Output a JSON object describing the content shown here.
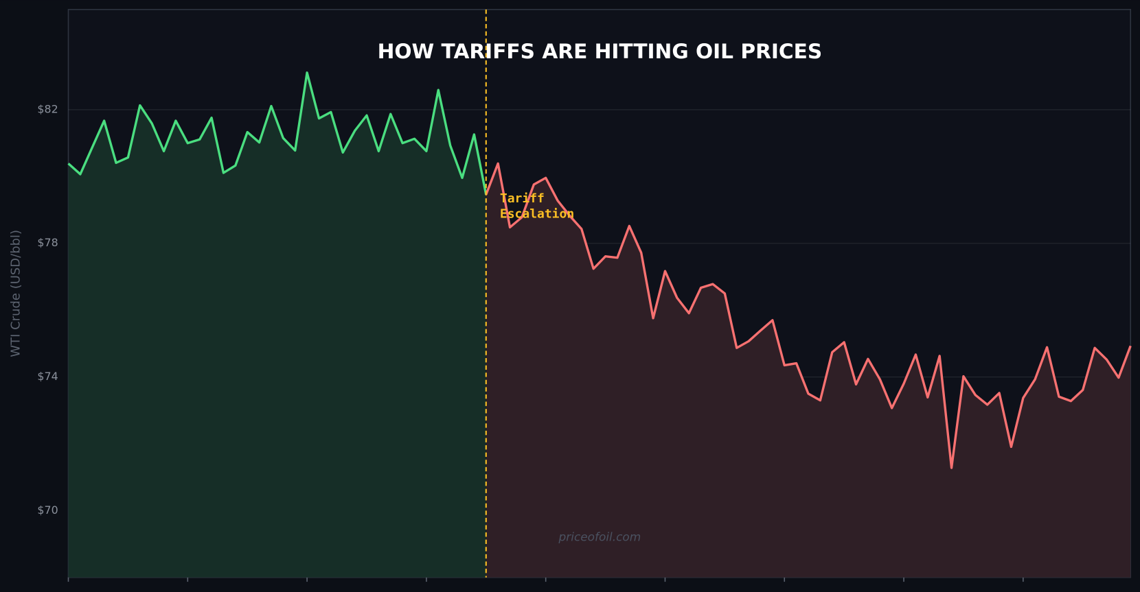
{
  "chart_data": {
    "type": "line",
    "title": "HOW TARIFFS ARE HITTING OIL PRICES",
    "y_label": "WTI Crude  (USD/bbl)",
    "watermark": "priceofoil.com",
    "annotation": {
      "text": [
        "Tariff",
        "Escalation"
      ],
      "x": 35,
      "color": "#fbbf24"
    },
    "x": [
      0,
      1,
      2,
      3,
      4,
      5,
      6,
      7,
      8,
      9,
      10,
      11,
      12,
      13,
      14,
      15,
      16,
      17,
      18,
      19,
      20,
      21,
      22,
      23,
      24,
      25,
      26,
      27,
      28,
      29,
      30,
      31,
      32,
      33,
      34,
      35,
      36,
      37,
      38,
      39,
      40,
      41,
      42,
      43,
      44,
      45,
      46,
      47,
      48,
      49,
      50,
      51,
      52,
      53,
      54,
      55,
      56,
      57,
      58,
      59,
      60,
      61,
      62,
      63,
      64,
      65,
      66,
      67,
      68,
      69,
      70,
      71,
      72,
      73,
      74,
      75,
      76,
      77,
      78,
      79,
      80,
      81,
      82,
      83,
      84,
      85,
      86,
      87,
      88,
      89
    ],
    "series": [
      {
        "color": "#4ade80",
        "fill": "#162e27",
        "values": [
          80.39,
          80.07,
          80.87,
          81.67,
          80.41,
          80.57,
          82.13,
          81.59,
          80.76,
          81.67,
          81.0,
          81.11,
          81.76,
          80.11,
          80.33,
          81.33,
          81.02,
          82.11,
          81.15,
          80.78,
          83.11,
          81.74,
          81.93,
          80.72,
          81.37,
          81.83,
          80.76,
          81.87,
          81.0,
          81.13,
          80.76,
          82.59,
          80.93,
          79.96,
          81.26,
          79.46,
          null,
          null,
          null,
          null,
          null,
          null,
          null,
          null,
          null,
          null,
          null,
          null,
          null,
          null,
          null,
          null,
          null,
          null,
          null,
          null,
          null,
          null,
          null,
          null,
          null,
          null,
          null,
          null,
          null,
          null,
          null,
          null,
          null,
          null,
          null,
          null,
          null,
          null,
          null,
          null,
          null,
          null,
          null,
          null,
          null,
          null,
          null,
          null,
          null,
          null,
          null,
          null,
          null,
          null
        ]
      },
      {
        "color": "#f87171",
        "fill": "#2f1f26",
        "values": [
          null,
          null,
          null,
          null,
          null,
          null,
          null,
          null,
          null,
          null,
          null,
          null,
          null,
          null,
          null,
          null,
          null,
          null,
          null,
          null,
          null,
          null,
          null,
          null,
          null,
          null,
          null,
          null,
          null,
          null,
          null,
          null,
          null,
          null,
          null,
          79.46,
          80.39,
          78.48,
          78.78,
          79.76,
          79.96,
          79.28,
          78.83,
          78.43,
          77.24,
          77.61,
          77.57,
          78.52,
          77.72,
          75.76,
          77.17,
          76.37,
          75.91,
          76.67,
          76.78,
          76.5,
          74.87,
          75.07,
          75.39,
          75.7,
          74.35,
          74.41,
          73.5,
          73.3,
          74.74,
          75.04,
          73.78,
          74.54,
          73.93,
          73.07,
          73.8,
          74.67,
          73.39,
          74.63,
          71.28,
          74.02,
          73.46,
          73.17,
          73.52,
          71.91,
          73.37,
          73.93,
          74.89,
          73.41,
          73.28,
          73.61,
          74.87,
          74.52,
          73.98,
          74.93
        ]
      }
    ],
    "xlim": [
      0,
      89
    ],
    "xticks": [
      0,
      10,
      20,
      30,
      40,
      50,
      60,
      70,
      80
    ],
    "ylim": [
      68,
      85
    ],
    "yticks": [
      {
        "value": 70,
        "label": "$70"
      },
      {
        "value": 74,
        "label": "$74"
      },
      {
        "value": 78,
        "label": "$78"
      },
      {
        "value": 82,
        "label": "$82"
      }
    ],
    "grid": true
  }
}
